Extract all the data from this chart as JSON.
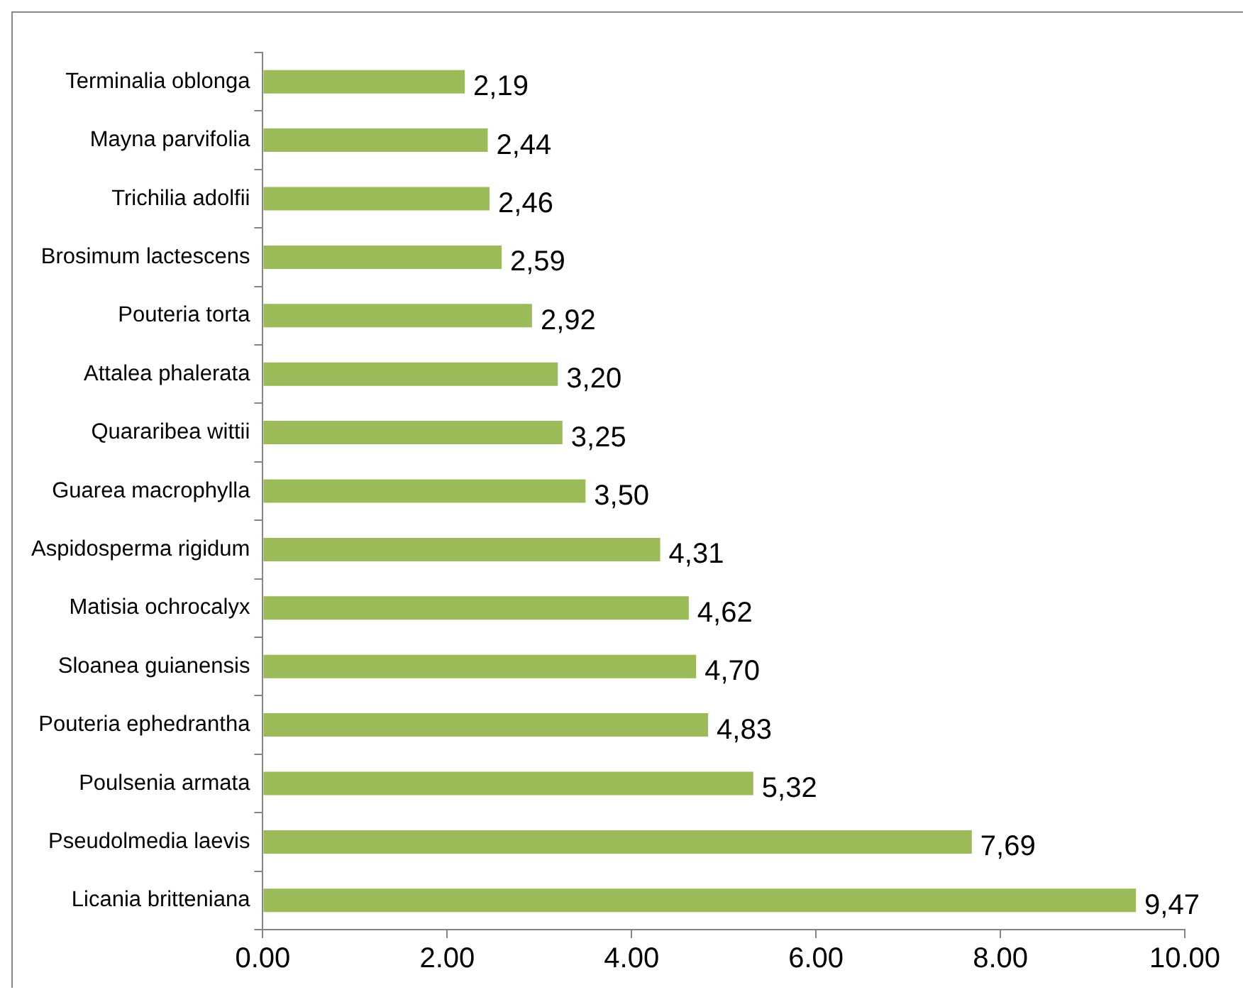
{
  "chart_data": {
    "type": "bar",
    "orientation": "horizontal",
    "categories": [
      "Terminalia oblonga",
      "Mayna parvifolia",
      "Trichilia adolfii",
      "Brosimum lactescens",
      "Pouteria torta",
      "Attalea phalerata",
      "Quararibea wittii",
      "Guarea macrophylla",
      "Aspidosperma rigidum",
      "Matisia ochrocalyx",
      "Sloanea guianensis",
      "Pouteria ephedrantha",
      "Poulsenia armata",
      "Pseudolmedia laevis",
      "Licania britteniana"
    ],
    "values": [
      2.19,
      2.44,
      2.46,
      2.59,
      2.92,
      3.2,
      3.25,
      3.5,
      4.31,
      4.62,
      4.7,
      4.83,
      5.32,
      7.69,
      9.47
    ],
    "value_labels": [
      "2,19",
      "2,44",
      "2,46",
      "2,59",
      "2,92",
      "3,20",
      "3,25",
      "3,50",
      "4,31",
      "4,62",
      "4,70",
      "4,83",
      "5,32",
      "7,69",
      "9,47"
    ],
    "color": "#9bbb59",
    "xlim": [
      0,
      10
    ],
    "xticks": [
      {
        "value": 0,
        "label": "0.00"
      },
      {
        "value": 2,
        "label": "2.00"
      },
      {
        "value": 4,
        "label": "4.00"
      },
      {
        "value": 6,
        "label": "6.00"
      },
      {
        "value": 8,
        "label": "8.00"
      },
      {
        "value": 10,
        "label": "10.00"
      }
    ],
    "grid": false,
    "legend": false
  }
}
